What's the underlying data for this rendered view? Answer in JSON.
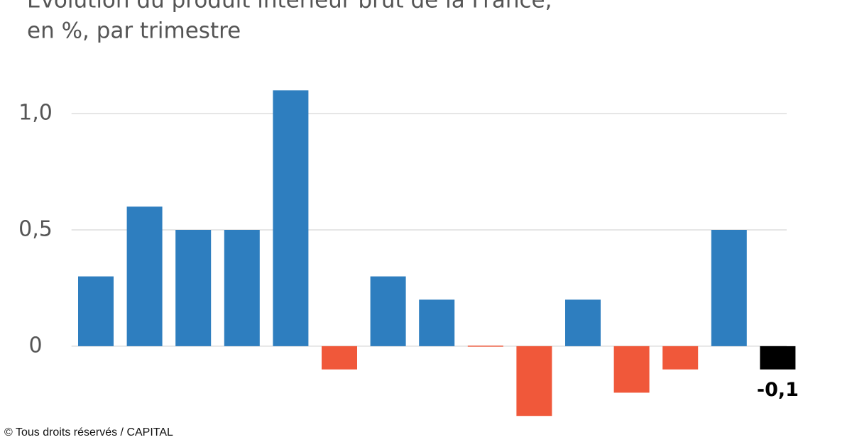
{
  "chart_data": {
    "type": "bar",
    "title": "Évolution du produit intérieur brut de la France,",
    "subtitle": "en %, par trimestre",
    "credit": "© Tous droits réservés / CAPITAL",
    "categories": [
      null,
      null,
      null,
      null,
      null,
      null,
      null,
      null,
      null,
      null,
      null,
      null,
      null,
      null,
      null
    ],
    "values": [
      0.3,
      0.6,
      0.5,
      0.5,
      1.1,
      -0.1,
      0.3,
      0.2,
      0.0,
      -0.3,
      0.2,
      -0.2,
      -0.1,
      0.5,
      -0.1
    ],
    "value_labels": [
      null,
      null,
      null,
      null,
      null,
      null,
      null,
      null,
      null,
      null,
      null,
      null,
      null,
      null,
      "-0,1"
    ],
    "colors": [
      "#2e7ebf",
      "#2e7ebf",
      "#2e7ebf",
      "#2e7ebf",
      "#2e7ebf",
      "#f0583a",
      "#2e7ebf",
      "#2e7ebf",
      "#f0583a",
      "#f0583a",
      "#2e7ebf",
      "#f0583a",
      "#f0583a",
      "#2e7ebf",
      "#000000"
    ],
    "ylim": [
      -0.4,
      1.4
    ],
    "yticks": [
      0,
      {
        "value": 0.5,
        "label": "0,5"
      },
      {
        "value": 1.0,
        "label": "1,0"
      }
    ],
    "grid": true
  }
}
